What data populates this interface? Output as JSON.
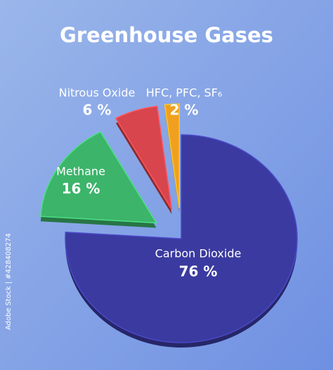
{
  "chart_data": {
    "type": "pie",
    "title": "Greenhouse Gases",
    "categories": [
      "Carbon Dioxide",
      "Methane",
      "Nitrous Oxide",
      "HFC, PFC, SF₆"
    ],
    "values": [
      76,
      16,
      6,
      2
    ],
    "value_labels": [
      "76 %",
      "16 %",
      "6 %",
      "2 %"
    ],
    "colors": [
      "#3b3aa0",
      "#3cb46a",
      "#d8454c",
      "#f0a020"
    ]
  },
  "watermark": "Adobe Stock | #428408274"
}
